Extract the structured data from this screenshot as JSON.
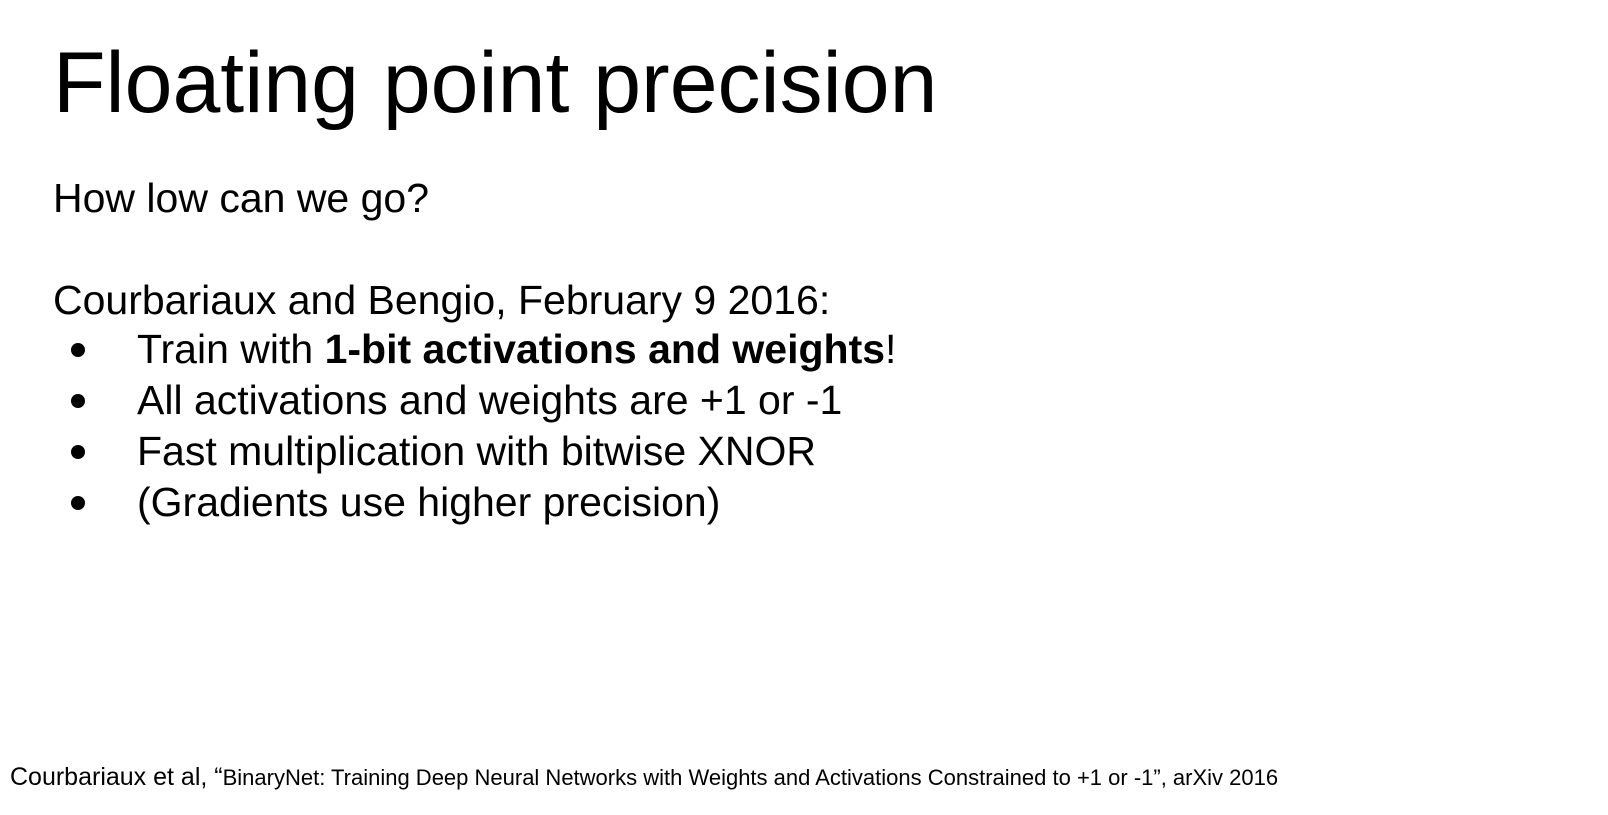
{
  "slide": {
    "title": "Floating point precision",
    "subtitle": "How low can we go?",
    "intro": "Courbariaux and Bengio, February 9 2016:",
    "bullets": [
      {
        "before": "Train with ",
        "bold": "1-bit activations and weights",
        "after": "!"
      },
      {
        "text": "All activations and weights are +1 or -1"
      },
      {
        "text": "Fast multiplication with bitwise XNOR"
      },
      {
        "text": "(Gradients use higher precision)"
      }
    ],
    "footer": {
      "authors": "Courbariaux et al, “",
      "paper": "BinaryNet: Training Deep Neural Networks with Weights and Activations Constrained to +1 or -1”, arXiv 2016"
    }
  },
  "colors": {
    "background": "#ffffff",
    "text": "#000000"
  }
}
